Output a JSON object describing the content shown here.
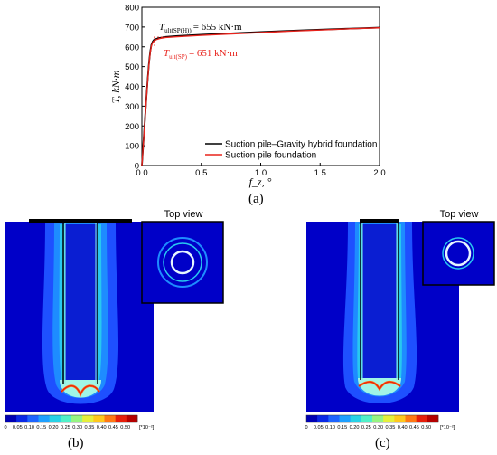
{
  "chart_data": {
    "type": "line",
    "xlabel": "f_z, °",
    "ylabel": "T, kN·m",
    "xlim": [
      0,
      2.0
    ],
    "ylim": [
      0,
      800
    ],
    "x_ticks": [
      "0.0",
      "0.5",
      "1.0",
      "1.5",
      "2.0"
    ],
    "y_ticks": [
      "0",
      "100",
      "200",
      "300",
      "400",
      "500",
      "600",
      "700",
      "800"
    ],
    "legend_position": "bottom-right",
    "series": [
      {
        "name": "Suction pile–Gravity hybrid foundation",
        "color": "#000000",
        "x": [
          0,
          0.01,
          0.02,
          0.03,
          0.04,
          0.05,
          0.06,
          0.07,
          0.08,
          0.09,
          0.1,
          0.12,
          0.15,
          0.2,
          0.3,
          0.5,
          0.75,
          1.0,
          1.25,
          1.5,
          1.75,
          2.0
        ],
        "y": [
          0,
          90,
          180,
          270,
          360,
          445,
          520,
          575,
          610,
          625,
          634,
          640,
          645,
          650,
          655,
          661,
          668,
          675,
          681,
          687,
          692,
          697
        ]
      },
      {
        "name": "Suction pile foundation",
        "color": "#e8231c",
        "x": [
          0,
          0.01,
          0.02,
          0.03,
          0.04,
          0.05,
          0.06,
          0.07,
          0.08,
          0.09,
          0.1,
          0.12,
          0.15,
          0.2,
          0.3,
          0.5,
          0.75,
          1.0,
          1.25,
          1.5,
          1.75,
          2.0
        ],
        "y": [
          0,
          88,
          176,
          265,
          355,
          440,
          515,
          570,
          605,
          620,
          629,
          636,
          642,
          647,
          651,
          658,
          665,
          672,
          679,
          685,
          691,
          696
        ]
      }
    ],
    "annotations": [
      {
        "label": "T",
        "sub": "ult(SP(H))",
        "value": "= 655 kN·m",
        "color": "#000000"
      },
      {
        "label": "T",
        "sub": "ult(SP)",
        "value": "= 651 kN·m",
        "color": "#e8231c"
      }
    ]
  },
  "panels": {
    "a_label": "(a)",
    "b_label": "(b)",
    "c_label": "(c)",
    "top_view_label": "Top view",
    "colorbar_ticks_b": [
      "0",
      "0.05",
      "0.10",
      "0.15",
      "0.20",
      "0.25",
      "0.30",
      "0.35",
      "0.40",
      "0.45",
      "0.50"
    ],
    "colorbar_unit_b": "[*10⁻²]",
    "colorbar_ticks_c": [
      "0",
      "0.05",
      "0.10",
      "0.15",
      "0.20",
      "0.25",
      "0.30",
      "0.35",
      "0.40",
      "0.45",
      "0.50"
    ],
    "colorbar_unit_c": "[*10⁻²]",
    "colorbar_colors": [
      "#0000b4",
      "#0a28e6",
      "#1e64ff",
      "#1ea0ff",
      "#28d2e6",
      "#50f0c8",
      "#96f582",
      "#e6f03c",
      "#ffc81e",
      "#ff7814",
      "#e61e0a",
      "#b40000"
    ]
  }
}
